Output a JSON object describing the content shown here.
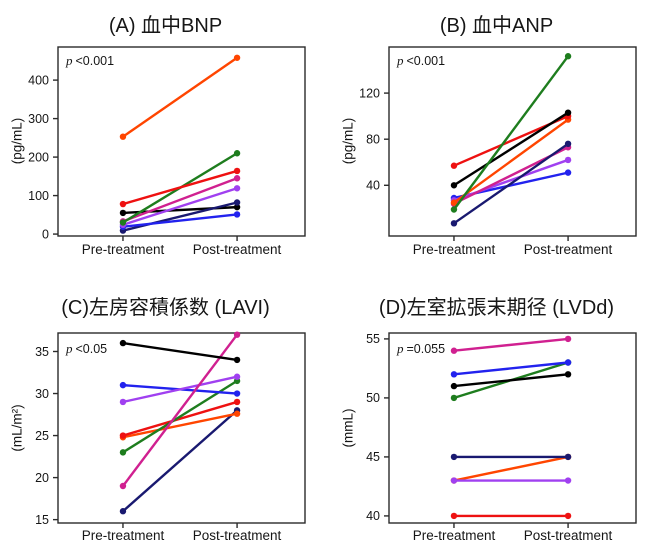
{
  "figure": {
    "background": "#FFFFFF",
    "x_categories": [
      "Pre-treatment",
      "Post-treatment"
    ]
  },
  "chart_data": [
    {
      "type": "line",
      "panel": "A",
      "title": "(A) 血中BNP",
      "ylabel": "(pg/mL)",
      "p_symbol": "p",
      "p_value": "<0.001",
      "categories": [
        "Pre-treatment",
        "Post-treatment"
      ],
      "yticks": [
        0,
        100,
        200,
        300,
        400
      ],
      "ylim": [
        -5,
        486
      ],
      "grid": false,
      "legend": false,
      "series": [
        {
          "name": "black",
          "color": "#000000",
          "values": [
            55,
            70
          ]
        },
        {
          "name": "navy",
          "color": "#191970",
          "values": [
            9,
            82
          ]
        },
        {
          "name": "blue",
          "color": "#2222EE",
          "values": [
            19,
            51
          ]
        },
        {
          "name": "violet",
          "color": "#A040F0",
          "values": [
            24,
            119
          ]
        },
        {
          "name": "magenta",
          "color": "#D02090",
          "values": [
            33,
            145
          ]
        },
        {
          "name": "green",
          "color": "#1E7D1E",
          "values": [
            30,
            210
          ]
        },
        {
          "name": "orange-red",
          "color": "#FF4500",
          "values": [
            253,
            458
          ]
        },
        {
          "name": "red",
          "color": "#EE1111",
          "values": [
            78,
            164
          ]
        }
      ]
    },
    {
      "type": "line",
      "panel": "B",
      "title": "(B) 血中ANP",
      "ylabel": "(pg/mL)",
      "p_symbol": "p",
      "p_value": "<0.001",
      "categories": [
        "Pre-treatment",
        "Post-treatment"
      ],
      "yticks": [
        40,
        80,
        120
      ],
      "ylim": [
        -4,
        160
      ],
      "grid": false,
      "legend": false,
      "series": [
        {
          "name": "blue",
          "color": "#2222EE",
          "values": [
            29,
            51
          ]
        },
        {
          "name": "violet",
          "color": "#A040F0",
          "values": [
            27,
            62
          ]
        },
        {
          "name": "magenta",
          "color": "#D02090",
          "values": [
            24,
            73
          ]
        },
        {
          "name": "navy",
          "color": "#191970",
          "values": [
            7,
            76
          ]
        },
        {
          "name": "orange-red",
          "color": "#FF4500",
          "values": [
            25,
            97
          ]
        },
        {
          "name": "red",
          "color": "#EE1111",
          "values": [
            57,
            100
          ]
        },
        {
          "name": "black",
          "color": "#000000",
          "values": [
            40,
            103
          ]
        },
        {
          "name": "green",
          "color": "#1E7D1E",
          "values": [
            19,
            152
          ]
        }
      ]
    },
    {
      "type": "line",
      "panel": "C",
      "title": "(C)左房容積係数 (LAVI)",
      "ylabel": "(mL/m²)",
      "p_symbol": "p",
      "p_value": "<0.05",
      "categories": [
        "Pre-treatment",
        "Post-treatment"
      ],
      "yticks": [
        15,
        20,
        25,
        30,
        35
      ],
      "ylim": [
        14.6,
        37.2
      ],
      "grid": false,
      "legend": false,
      "series": [
        {
          "name": "navy",
          "color": "#191970",
          "values": [
            16,
            28
          ]
        },
        {
          "name": "orange-red",
          "color": "#FF4500",
          "values": [
            24.8,
            27.6
          ]
        },
        {
          "name": "red",
          "color": "#EE1111",
          "values": [
            25,
            29
          ]
        },
        {
          "name": "green",
          "color": "#1E7D1E",
          "values": [
            23,
            31.5
          ]
        },
        {
          "name": "blue",
          "color": "#2222EE",
          "values": [
            31,
            30
          ]
        },
        {
          "name": "violet",
          "color": "#A040F0",
          "values": [
            29,
            32
          ]
        },
        {
          "name": "magenta",
          "color": "#D02090",
          "values": [
            19,
            37
          ]
        },
        {
          "name": "black",
          "color": "#000000",
          "values": [
            36,
            34
          ]
        }
      ]
    },
    {
      "type": "line",
      "panel": "D",
      "title": "(D)左室拡張末期径 (LVDd)",
      "ylabel": "(mmL)",
      "p_symbol": "p",
      "p_value": "=0.055",
      "categories": [
        "Pre-treatment",
        "Post-treatment"
      ],
      "yticks": [
        40,
        45,
        50,
        55
      ],
      "ylim": [
        39.4,
        55.5
      ],
      "grid": false,
      "legend": false,
      "series": [
        {
          "name": "red",
          "color": "#EE1111",
          "values": [
            40,
            40
          ]
        },
        {
          "name": "orange-red",
          "color": "#FF4500",
          "values": [
            43,
            45
          ]
        },
        {
          "name": "violet",
          "color": "#A040F0",
          "values": [
            43,
            43
          ]
        },
        {
          "name": "navy",
          "color": "#191970",
          "values": [
            45,
            45
          ]
        },
        {
          "name": "green",
          "color": "#1E7D1E",
          "values": [
            50,
            53
          ]
        },
        {
          "name": "black",
          "color": "#000000",
          "values": [
            51,
            52
          ]
        },
        {
          "name": "blue",
          "color": "#2222EE",
          "values": [
            52,
            53
          ]
        },
        {
          "name": "magenta",
          "color": "#D02090",
          "values": [
            54,
            55
          ]
        }
      ]
    }
  ]
}
